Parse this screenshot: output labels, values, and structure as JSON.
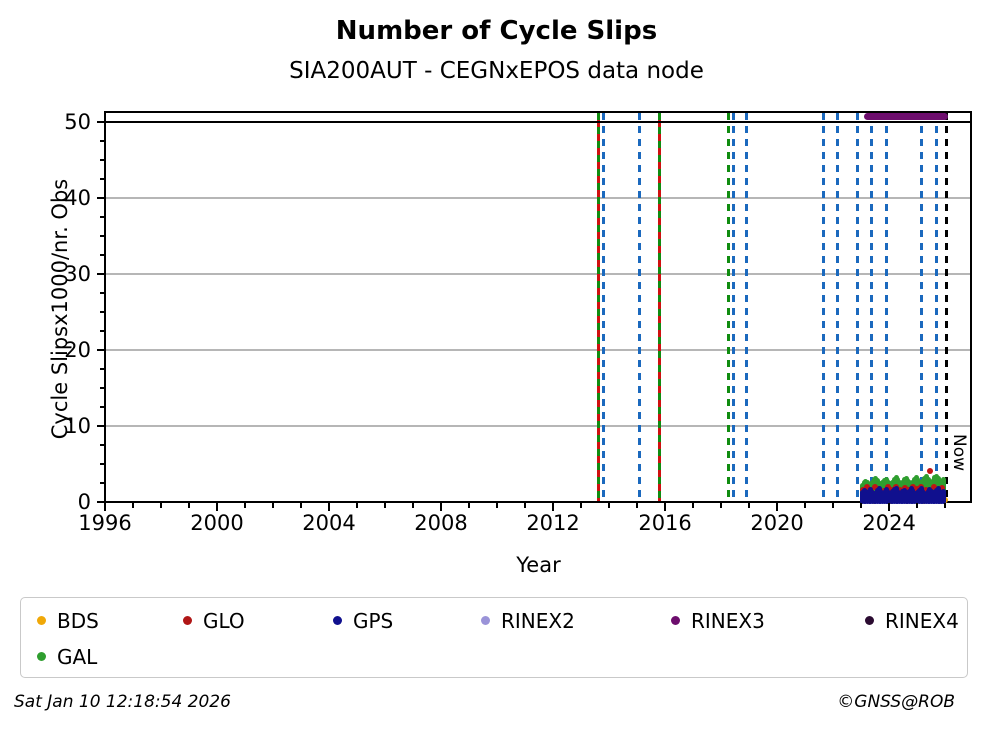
{
  "header": {
    "title": "Number of Cycle Slips",
    "subtitle": "SIA200AUT - CEGNxEPOS data node"
  },
  "footer": {
    "timestamp": "Sat Jan 10 12:18:54 2026",
    "credit": "©GNSS@ROB"
  },
  "legend": {
    "items": [
      {
        "label": "BDS",
        "color": "#f0a808"
      },
      {
        "label": "GLO",
        "color": "#b01616"
      },
      {
        "label": "GPS",
        "color": "#10108e"
      },
      {
        "label": "RINEX2",
        "color": "#9a93d8"
      },
      {
        "label": "RINEX3",
        "color": "#6d0d6d"
      },
      {
        "label": "RINEX4",
        "color": "#2b0b31"
      },
      {
        "label": "GAL",
        "color": "#2f9e2f"
      }
    ]
  },
  "chart_data": {
    "type": "scatter",
    "title": "Number of Cycle Slips",
    "subtitle": "SIA200AUT - CEGNxEPOS data node",
    "xlabel": "Year",
    "ylabel": "Cycle Slipsx1000/nr. Obs",
    "xlim": [
      1996,
      2026.96
    ],
    "ylim": [
      -0.15,
      51.3
    ],
    "xticks": [
      1996,
      2000,
      2004,
      2008,
      2012,
      2016,
      2020,
      2024
    ],
    "yticks": [
      0,
      10,
      20,
      30,
      40,
      50
    ],
    "grid": {
      "axis": "y",
      "color": "#b6b6b6"
    },
    "threshold_line": {
      "y": 50,
      "color": "#000000"
    },
    "now_marker": {
      "year": 2026.04,
      "label": "Now",
      "color": "#000000"
    },
    "line_colors": {
      "blue": "#1b69be",
      "green": "#108c10",
      "red": "#d01010"
    },
    "event_lines": [
      {
        "year": 2013.61,
        "style": "red-green-dashed"
      },
      {
        "year": 2013.8,
        "style": "blue-dashed"
      },
      {
        "year": 2015.07,
        "style": "blue-dashed"
      },
      {
        "year": 2015.79,
        "style": "red-green-dashed"
      },
      {
        "year": 2018.25,
        "style": "green-dashed"
      },
      {
        "year": 2018.46,
        "style": "blue-dashed"
      },
      {
        "year": 2018.89,
        "style": "blue-dashed"
      },
      {
        "year": 2021.64,
        "style": "blue-dashed"
      },
      {
        "year": 2022.14,
        "style": "blue-dashed"
      },
      {
        "year": 2022.86,
        "style": "blue-dashed"
      },
      {
        "year": 2023.36,
        "style": "blue-dashed"
      },
      {
        "year": 2023.89,
        "style": "blue-dashed"
      },
      {
        "year": 2025.14,
        "style": "blue-dashed"
      },
      {
        "year": 2025.71,
        "style": "blue-dashed"
      }
    ],
    "rinex3_band": {
      "name": "RINEX3",
      "t_start": 2023.1,
      "t_end": 2026.1,
      "value": 50.7,
      "color": "#6d0d6d"
    },
    "layers": [
      {
        "name": "BDS",
        "kind": "points",
        "color": "#f0a808",
        "points": [
          [
            2023.15,
            0.2
          ],
          [
            2023.45,
            0.15
          ],
          [
            2023.75,
            0.2
          ],
          [
            2024.05,
            0.15
          ],
          [
            2024.35,
            0.2
          ],
          [
            2024.65,
            0.15
          ],
          [
            2024.95,
            0.2
          ],
          [
            2025.25,
            0.15
          ],
          [
            2025.55,
            0.2
          ],
          [
            2025.8,
            0.15
          ],
          [
            2026.0,
            0.2
          ]
        ]
      },
      {
        "name": "GAL",
        "kind": "band",
        "color": "#2f9e2f",
        "t0": 2023.05,
        "dt": 0.06,
        "v_lo": 1.15,
        "v_hi": [
          2.2,
          2.5,
          2.7,
          2.6,
          2.3,
          2.2,
          2.6,
          2.9,
          3.1,
          2.8,
          2.4,
          2.2,
          2.5,
          2.8,
          3.0,
          2.7,
          2.4,
          2.3,
          2.6,
          3.0,
          3.2,
          2.9,
          2.5,
          2.3,
          2.5,
          2.9,
          3.1,
          2.8,
          2.5,
          2.3,
          2.6,
          3.0,
          3.2,
          3.0,
          2.6,
          2.4,
          2.7,
          3.1,
          3.3,
          3.0,
          2.7,
          2.5,
          2.8,
          3.2,
          3.4,
          3.1,
          2.8,
          2.6,
          3.0
        ]
      },
      {
        "name": "GLO",
        "kind": "points",
        "color": "#c01414",
        "points": [
          [
            2023.07,
            1.6
          ],
          [
            2023.2,
            1.9
          ],
          [
            2023.35,
            1.5
          ],
          [
            2023.5,
            2.0
          ],
          [
            2023.65,
            1.7
          ],
          [
            2023.8,
            1.4
          ],
          [
            2023.95,
            1.9
          ],
          [
            2024.1,
            1.6
          ],
          [
            2024.25,
            2.0
          ],
          [
            2024.4,
            1.5
          ],
          [
            2024.55,
            1.8
          ],
          [
            2024.7,
            1.6
          ],
          [
            2024.85,
            2.0
          ],
          [
            2025.0,
            1.7
          ],
          [
            2025.15,
            1.9
          ],
          [
            2025.3,
            1.6
          ],
          [
            2025.45,
            4.1
          ],
          [
            2025.6,
            1.9
          ],
          [
            2025.75,
            1.5
          ],
          [
            2025.88,
            1.8
          ]
        ]
      },
      {
        "name": "GPS",
        "kind": "band",
        "color": "#10108e",
        "t0": 2023.05,
        "dt": 0.06,
        "v_lo": 0.05,
        "v_hi": [
          1.2,
          1.5,
          1.3,
          1.0,
          1.4,
          1.6,
          1.2,
          0.9,
          1.1,
          1.5,
          1.7,
          1.3,
          1.0,
          1.2,
          1.6,
          1.4,
          1.1,
          0.9,
          1.3,
          1.6,
          1.8,
          1.4,
          1.1,
          1.0,
          1.3,
          1.5,
          1.2,
          1.0,
          1.4,
          1.7,
          1.5,
          1.1,
          0.9,
          1.2,
          1.5,
          1.8,
          1.4,
          1.1,
          1.0,
          1.3,
          1.6,
          1.3,
          1.0,
          1.2,
          1.5,
          1.7,
          1.4,
          1.1,
          1.3
        ]
      }
    ]
  }
}
